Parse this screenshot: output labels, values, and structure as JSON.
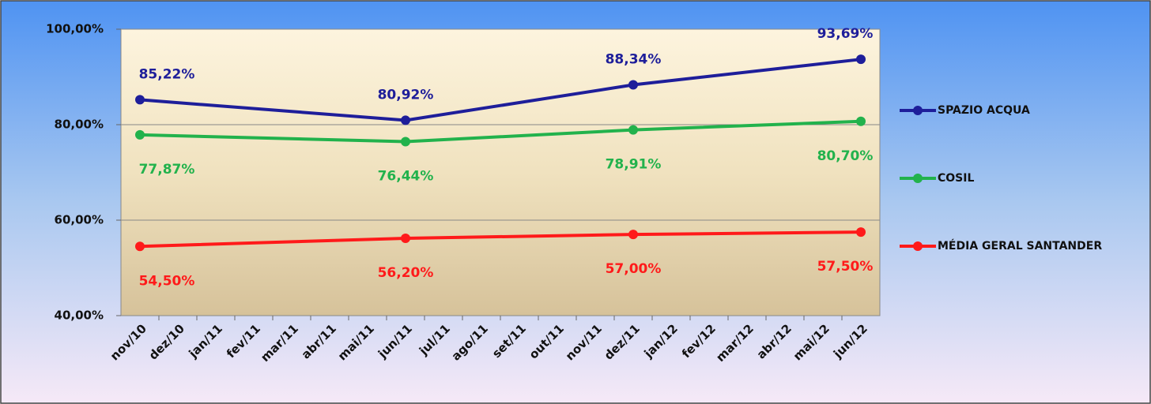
{
  "chart_data": {
    "type": "line",
    "categories": [
      "nov/10",
      "dez/10",
      "jan/11",
      "fev/11",
      "mar/11",
      "abr/11",
      "mai/11",
      "jun/11",
      "jul/11",
      "ago/11",
      "set/11",
      "out/11",
      "nov/11",
      "dez/11",
      "jan/12",
      "fev/12",
      "mar/12",
      "abr/12",
      "mai/12",
      "jun/12"
    ],
    "series": [
      {
        "name": "SPAZIO ACQUA",
        "color": "#1e1e9a",
        "label_position": "above",
        "values": [
          85.22,
          null,
          null,
          null,
          null,
          null,
          null,
          80.92,
          null,
          null,
          null,
          null,
          null,
          88.34,
          null,
          null,
          null,
          null,
          null,
          93.69
        ],
        "value_labels": [
          "85,22%",
          null,
          null,
          null,
          null,
          null,
          null,
          "80,92%",
          null,
          null,
          null,
          null,
          null,
          "88,34%",
          null,
          null,
          null,
          null,
          null,
          "93,69%"
        ]
      },
      {
        "name": "COSIL",
        "color": "#22b24c",
        "label_position": "below",
        "values": [
          77.87,
          null,
          null,
          null,
          null,
          null,
          null,
          76.44,
          null,
          null,
          null,
          null,
          null,
          78.91,
          null,
          null,
          null,
          null,
          null,
          80.7
        ],
        "value_labels": [
          "77,87%",
          null,
          null,
          null,
          null,
          null,
          null,
          "76,44%",
          null,
          null,
          null,
          null,
          null,
          "78,91%",
          null,
          null,
          null,
          null,
          null,
          "80,70%"
        ]
      },
      {
        "name": "MÉDIA GERAL SANTANDER",
        "color": "#ff1a1a",
        "label_position": "below",
        "values": [
          54.5,
          null,
          null,
          null,
          null,
          null,
          null,
          56.2,
          null,
          null,
          null,
          null,
          null,
          57.0,
          null,
          null,
          null,
          null,
          null,
          57.5
        ],
        "value_labels": [
          "54,50%",
          null,
          null,
          null,
          null,
          null,
          null,
          "56,20%",
          null,
          null,
          null,
          null,
          null,
          "57,00%",
          null,
          null,
          null,
          null,
          null,
          "57,50%"
        ]
      }
    ],
    "ylim": [
      40,
      100
    ],
    "yticks": [
      {
        "value": 40,
        "label": "40,00%"
      },
      {
        "value": 60,
        "label": "60,00%"
      },
      {
        "value": 80,
        "label": "80,00%"
      },
      {
        "value": 100,
        "label": "100,00%"
      }
    ],
    "grid": true,
    "connect_gaps": true,
    "legend": "right"
  }
}
